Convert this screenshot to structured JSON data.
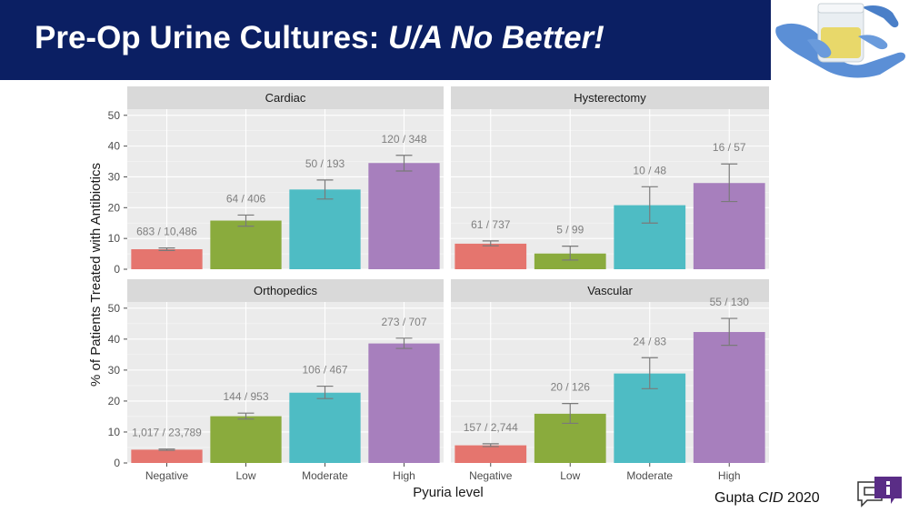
{
  "slide": {
    "title_main": "Pre-Op Urine Cultures: ",
    "title_emph": "U/A No Better!",
    "citation_author": "Gupta ",
    "citation_journal": "CID",
    "citation_year": " 2020"
  },
  "colors": {
    "header_bg": "#0b1f63",
    "Negative": "#e5756e",
    "Low": "#8aab3d",
    "Moderate": "#4ebcc4",
    "High": "#a77fbd",
    "panel_bg": "#ebebeb",
    "strip_bg": "#d9d9d9"
  },
  "chart_data": {
    "type": "bar",
    "xlabel": "Pyuria level",
    "ylabel": "% of Patients Treated with Antibiotics",
    "ylim": [
      0,
      52
    ],
    "yticks": [
      0,
      10,
      20,
      30,
      40,
      50
    ],
    "grid": true,
    "categories": [
      "Negative",
      "Low",
      "Moderate",
      "High"
    ],
    "panels": [
      {
        "name": "Cardiac",
        "values": [
          6.5,
          15.8,
          25.9,
          34.5
        ],
        "err_low": [
          6.1,
          14.0,
          22.8,
          31.9
        ],
        "err_high": [
          6.9,
          17.6,
          29.0,
          37.0
        ],
        "labels": [
          "683 / 10,486",
          "64 / 406",
          "50 / 193",
          "120 / 348"
        ]
      },
      {
        "name": "Hysterectomy",
        "values": [
          8.3,
          5.1,
          20.8,
          28.0
        ],
        "err_low": [
          7.6,
          3.0,
          15.0,
          22.0
        ],
        "err_high": [
          9.2,
          7.5,
          26.8,
          34.2
        ],
        "labels": [
          "61 / 737",
          "5 / 99",
          "10 / 48",
          "16 / 57"
        ]
      },
      {
        "name": "Orthopedics",
        "values": [
          4.3,
          15.1,
          22.7,
          38.6
        ],
        "err_low": [
          4.1,
          14.2,
          20.8,
          37.0
        ],
        "err_high": [
          4.5,
          16.1,
          24.8,
          40.3
        ],
        "labels": [
          "1,017 / 23,789",
          "144 / 953",
          "106 / 467",
          "273 / 707"
        ]
      },
      {
        "name": "Vascular",
        "values": [
          5.7,
          15.9,
          28.9,
          42.3
        ],
        "err_low": [
          5.3,
          12.8,
          24.0,
          38.0
        ],
        "err_high": [
          6.2,
          19.2,
          34.0,
          46.7
        ],
        "labels": [
          "157 / 2,744",
          "20 / 126",
          "24 / 83",
          "55 / 130"
        ]
      }
    ]
  }
}
